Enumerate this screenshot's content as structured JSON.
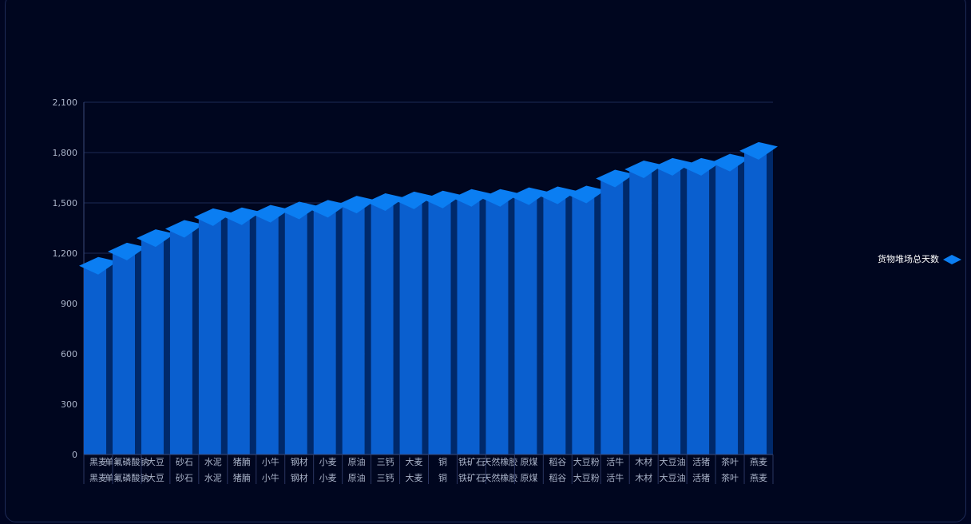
{
  "chart_data": {
    "type": "bar",
    "categories": [
      "黑麦",
      "单氟磷酸钠",
      "大豆",
      "砂石",
      "水泥",
      "猪腩",
      "小牛",
      "钢材",
      "小麦",
      "原油",
      "三钙",
      "大麦",
      "铜",
      "铁矿石",
      "天然橡胶",
      "原煤",
      "稻谷",
      "大豆粉",
      "活牛",
      "木材",
      "大豆油",
      "活猪",
      "茶叶",
      "燕麦"
    ],
    "series": [
      {
        "name": "货物堆场总天数",
        "values": [
          1125,
          1210,
          1290,
          1345,
          1415,
          1420,
          1435,
          1455,
          1465,
          1490,
          1505,
          1515,
          1520,
          1530,
          1530,
          1540,
          1545,
          1550,
          1645,
          1700,
          1715,
          1715,
          1740,
          1810
        ]
      }
    ],
    "ylim": [
      0,
      2100
    ],
    "yticks": [
      0,
      300,
      600,
      900,
      1200,
      1500,
      1800,
      2100
    ],
    "ytick_labels": [
      "0",
      "300",
      "600",
      "900",
      "1,200",
      "1,500",
      "1,800",
      "2,100"
    ],
    "legend_position": "right",
    "grid": true,
    "colors": {
      "front": "#0a5fcf",
      "side": "#00296a",
      "top": "#0b7ef2",
      "grid": "#1b2a55",
      "axis_text": "#a9b3c8",
      "legend_text": "#ffffff"
    }
  }
}
